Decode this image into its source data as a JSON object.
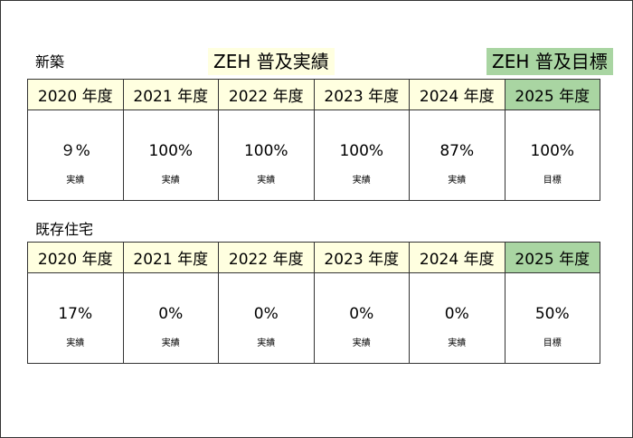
{
  "titles": {
    "actual": "ZEH 普及実績",
    "target": "ZEH 普及目標"
  },
  "colors": {
    "actual_bg": "#ffffe0",
    "target_bg": "#a9d5a2",
    "border": "#333333"
  },
  "new_build": {
    "label": "新築",
    "columns": [
      {
        "year": "2020 年度",
        "value": "９%",
        "kind": "実績"
      },
      {
        "year": "2021 年度",
        "value": "100%",
        "kind": "実績"
      },
      {
        "year": "2022 年度",
        "value": "100%",
        "kind": "実績"
      },
      {
        "year": "2023 年度",
        "value": "100%",
        "kind": "実績"
      },
      {
        "year": "2024 年度",
        "value": "87%",
        "kind": "実績"
      },
      {
        "year": "2025 年度",
        "value": "100%",
        "kind": "目標"
      }
    ]
  },
  "existing": {
    "label": "既存住宅",
    "columns": [
      {
        "year": "2020 年度",
        "value": "17%",
        "kind": "実績"
      },
      {
        "year": "2021 年度",
        "value": "0%",
        "kind": "実績"
      },
      {
        "year": "2022 年度",
        "value": "0%",
        "kind": "実績"
      },
      {
        "year": "2023 年度",
        "value": "0%",
        "kind": "実績"
      },
      {
        "year": "2024 年度",
        "value": "0%",
        "kind": "実績"
      },
      {
        "year": "2025 年度",
        "value": "50%",
        "kind": "目標"
      }
    ]
  }
}
